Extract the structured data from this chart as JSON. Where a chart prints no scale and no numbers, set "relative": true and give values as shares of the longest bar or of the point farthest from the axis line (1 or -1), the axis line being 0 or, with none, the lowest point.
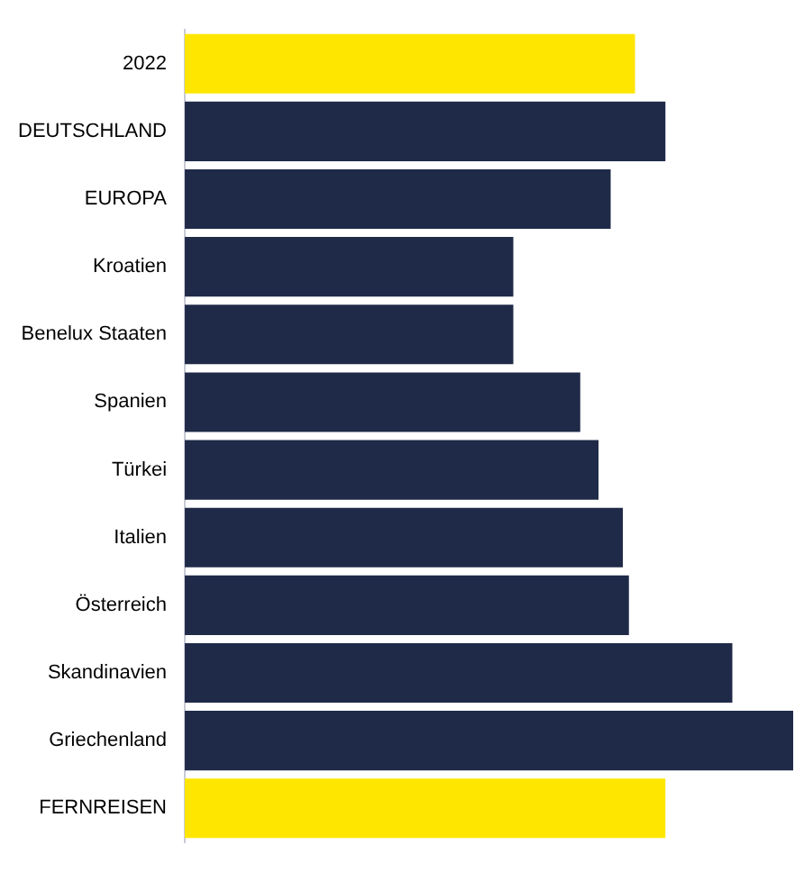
{
  "chart_data": {
    "type": "bar",
    "orientation": "horizontal",
    "relative": true,
    "categories": [
      "2022",
      "DEUTSCHLAND",
      "EUROPA",
      "Kroatien",
      "Benelux Staaten",
      "Spanien",
      "Türkei",
      "Italien",
      "Österreich",
      "Skandinavien",
      "Griechenland",
      "FERNREISEN"
    ],
    "values": [
      0.74,
      0.79,
      0.7,
      0.54,
      0.54,
      0.65,
      0.68,
      0.72,
      0.73,
      0.9,
      1,
      0.79
    ],
    "colors": [
      "#ffe600",
      "#1f2a48",
      "#1f2a48",
      "#1f2a48",
      "#1f2a48",
      "#1f2a48",
      "#1f2a48",
      "#1f2a48",
      "#1f2a48",
      "#1f2a48",
      "#1f2a48",
      "#ffe600"
    ],
    "legend": false
  }
}
